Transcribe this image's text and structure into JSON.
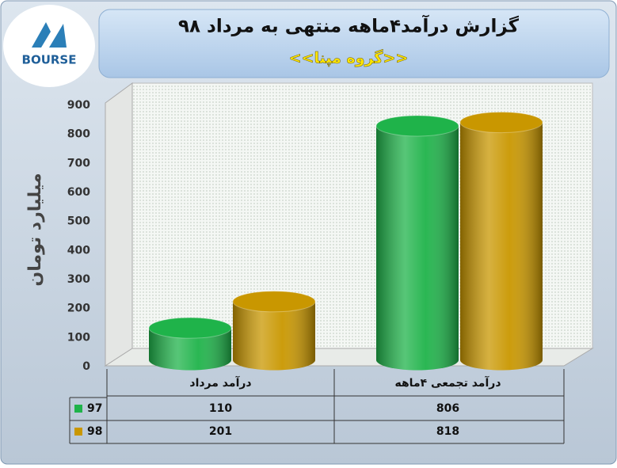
{
  "logo_text": "BOURSE",
  "chart_data": {
    "type": "bar",
    "title": "گزارش درآمد۴ماهه منتهی به مرداد ۹۸",
    "subtitle": "<<گروه مپنا>>",
    "y_label": "میلیارد تومان",
    "categories": [
      "درآمد مرداد",
      "درآمد تجمعی ۴ماهه"
    ],
    "series": [
      {
        "name": "97",
        "color": "#1fb34a",
        "values": [
          110,
          806
        ]
      },
      {
        "name": "98",
        "color": "#c99700",
        "values": [
          201,
          818
        ]
      }
    ],
    "ylim": [
      0,
      900
    ],
    "yticks": [
      0,
      100,
      200,
      300,
      400,
      500,
      600,
      700,
      800,
      900
    ],
    "grid": false
  }
}
